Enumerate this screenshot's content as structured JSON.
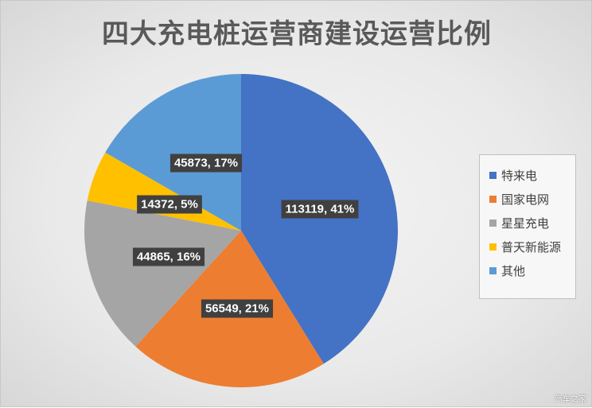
{
  "chart_data": {
    "type": "pie",
    "title": "四大充电桩运营商建设运营比例",
    "slices": [
      {
        "name": "特来电",
        "value": 113119,
        "percent": "41%",
        "color": "#4472c4"
      },
      {
        "name": "国家电网",
        "value": 56549,
        "percent": "21%",
        "color": "#ed7d31"
      },
      {
        "name": "星星充电",
        "value": 44865,
        "percent": "16%",
        "color": "#a5a5a5"
      },
      {
        "name": "普天新能源",
        "value": 14372,
        "percent": "5%",
        "color": "#ffc000"
      },
      {
        "name": "其他",
        "value": 45873,
        "percent": "17%",
        "color": "#5b9bd5"
      }
    ],
    "start_angle_deg": 0,
    "direction": "clockwise",
    "legend_position": "right",
    "data_labels": [
      "113119, 41%",
      "56549, 21%",
      "44865, 16%",
      "14372, 5%",
      "45873, 17%"
    ]
  },
  "watermark": "汽车之家"
}
